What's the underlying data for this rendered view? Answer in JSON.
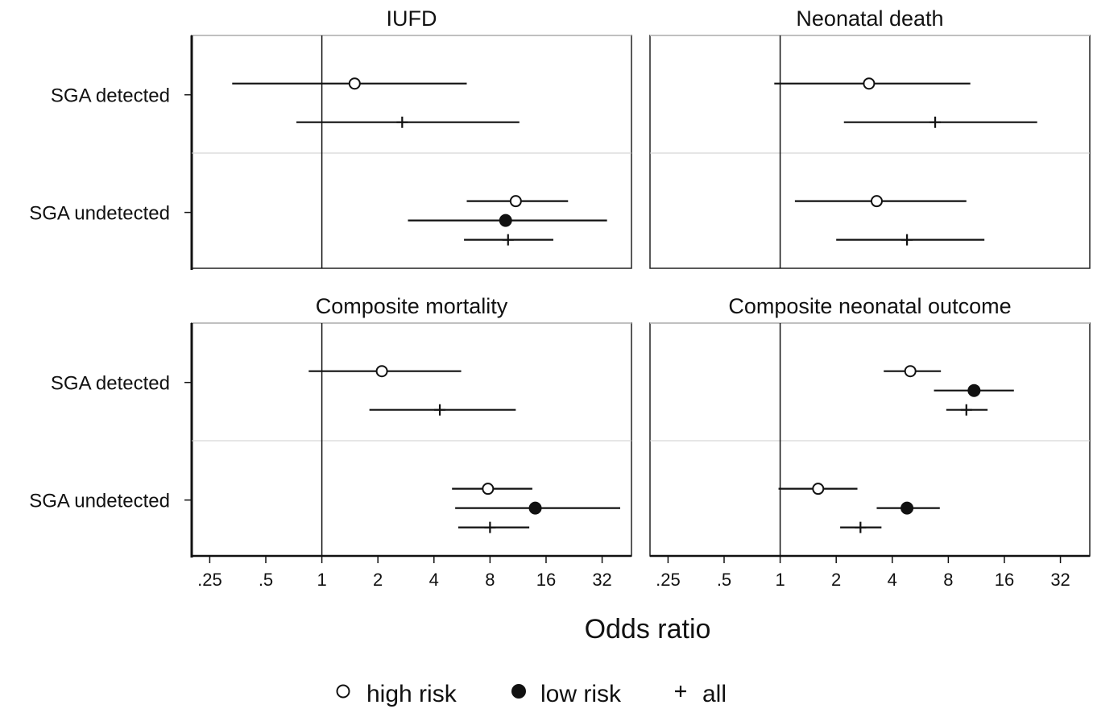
{
  "chart_data": {
    "type": "forest",
    "x_scale": "log2",
    "xlabel": "Odds ratio",
    "x_ticks": [
      0.25,
      0.5,
      1,
      2,
      4,
      8,
      16,
      32
    ],
    "x_tick_labels": [
      ".25",
      ".5",
      "1",
      "2",
      "4",
      "8",
      "16",
      "32"
    ],
    "xlim": [
      0.2,
      46
    ],
    "reference_line": 1,
    "rows": [
      "SGA detected",
      "SGA undetected"
    ],
    "legend": {
      "placement": "bottom",
      "entries": [
        {
          "key": "high",
          "label": "high risk",
          "marker": "open-circle"
        },
        {
          "key": "low",
          "label": "low risk",
          "marker": "filled-circle"
        },
        {
          "key": "all",
          "label": "all",
          "marker": "plus"
        }
      ]
    },
    "panels": [
      {
        "title": "IUFD",
        "estimates": [
          {
            "row": "SGA detected",
            "series": "high",
            "or": 1.5,
            "lo": 0.33,
            "hi": 6.0
          },
          {
            "row": "SGA detected",
            "series": "all",
            "or": 2.7,
            "lo": 0.73,
            "hi": 11.5
          },
          {
            "row": "SGA undetected",
            "series": "high",
            "or": 11.0,
            "lo": 6.0,
            "hi": 21.0
          },
          {
            "row": "SGA undetected",
            "series": "low",
            "or": 9.7,
            "lo": 2.9,
            "hi": 34.0
          },
          {
            "row": "SGA undetected",
            "series": "all",
            "or": 10.0,
            "lo": 5.8,
            "hi": 17.5
          }
        ]
      },
      {
        "title": "Neonatal death",
        "estimates": [
          {
            "row": "SGA detected",
            "series": "high",
            "or": 3.0,
            "lo": 0.93,
            "hi": 10.5
          },
          {
            "row": "SGA detected",
            "series": "all",
            "or": 6.8,
            "lo": 2.2,
            "hi": 24.0
          },
          {
            "row": "SGA undetected",
            "series": "high",
            "or": 3.3,
            "lo": 1.2,
            "hi": 10.0
          },
          {
            "row": "SGA undetected",
            "series": "all",
            "or": 4.8,
            "lo": 2.0,
            "hi": 12.5
          }
        ]
      },
      {
        "title": "Composite mortality",
        "estimates": [
          {
            "row": "SGA detected",
            "series": "high",
            "or": 2.1,
            "lo": 0.85,
            "hi": 5.6
          },
          {
            "row": "SGA detected",
            "series": "all",
            "or": 4.3,
            "lo": 1.8,
            "hi": 11.0
          },
          {
            "row": "SGA undetected",
            "series": "high",
            "or": 7.8,
            "lo": 5.0,
            "hi": 13.5
          },
          {
            "row": "SGA undetected",
            "series": "low",
            "or": 14.0,
            "lo": 5.2,
            "hi": 40.0
          },
          {
            "row": "SGA undetected",
            "series": "all",
            "or": 8.0,
            "lo": 5.4,
            "hi": 13.0
          }
        ]
      },
      {
        "title": "Composite neonatal outcome",
        "estimates": [
          {
            "row": "SGA detected",
            "series": "high",
            "or": 5.0,
            "lo": 3.6,
            "hi": 7.3
          },
          {
            "row": "SGA detected",
            "series": "low",
            "or": 11.0,
            "lo": 6.7,
            "hi": 18.0
          },
          {
            "row": "SGA detected",
            "series": "all",
            "or": 10.0,
            "lo": 7.8,
            "hi": 13.0
          },
          {
            "row": "SGA undetected",
            "series": "high",
            "or": 1.6,
            "lo": 0.98,
            "hi": 2.6
          },
          {
            "row": "SGA undetected",
            "series": "low",
            "or": 4.8,
            "lo": 3.3,
            "hi": 7.2
          },
          {
            "row": "SGA undetected",
            "series": "all",
            "or": 2.7,
            "lo": 2.1,
            "hi": 3.5
          }
        ]
      }
    ]
  }
}
